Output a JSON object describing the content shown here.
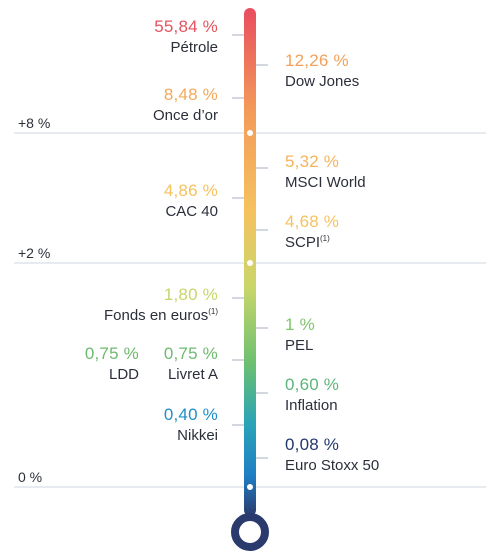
{
  "chart_data": {
    "type": "thermometer",
    "scale_labels": [
      {
        "label": "+8 %",
        "value": 8
      },
      {
        "label": "+2 %",
        "value": 2
      },
      {
        "label": "0 %",
        "value": 0
      }
    ],
    "entries": [
      {
        "label": "55,84 %",
        "name": "Pétrole",
        "value": 55.84,
        "side": "left",
        "color": "#e4545f"
      },
      {
        "label": "12,26 %",
        "name": "Dow Jones",
        "value": 12.26,
        "side": "right",
        "color": "#f3a05a"
      },
      {
        "label": "8,48 %",
        "name": "Once d’or",
        "value": 8.48,
        "side": "left",
        "color": "#f4a95a"
      },
      {
        "label": "5,32 %",
        "name": "MSCI World",
        "value": 5.32,
        "side": "right",
        "color": "#f4b45e"
      },
      {
        "label": "4,86 %",
        "name": "CAC 40",
        "value": 4.86,
        "side": "left",
        "color": "#f6c25f"
      },
      {
        "label": "4,68 %",
        "name": "SCPI",
        "note": "(1)",
        "value": 4.68,
        "side": "right",
        "color": "#f6c25f"
      },
      {
        "label": "1,80 %",
        "name": "Fonds en euros",
        "note": "(1)",
        "value": 1.8,
        "side": "left",
        "color": "#c8d56a"
      },
      {
        "label": "1 %",
        "name": "PEL",
        "value": 1.0,
        "side": "right",
        "color": "#7fc46b"
      },
      {
        "label": "0,75 %",
        "name": "LDD",
        "value": 0.75,
        "side": "left",
        "color": "#6dbb6e"
      },
      {
        "label": "0,75 %",
        "name": "Livret A",
        "value": 0.75,
        "side": "left",
        "color": "#6dbb6e"
      },
      {
        "label": "0,60 %",
        "name": "Inflation",
        "value": 0.6,
        "side": "right",
        "color": "#5db57a"
      },
      {
        "label": "0,40 %",
        "name": "Nikkei",
        "value": 0.4,
        "side": "left",
        "color": "#1f8fc9"
      },
      {
        "label": "0,08 %",
        "name": "Euro Stoxx 50",
        "value": 0.08,
        "side": "right",
        "color": "#24386b"
      }
    ],
    "gradient_colors": [
      "#e84d5f",
      "#f39a5a",
      "#f5c25f",
      "#c9d66a",
      "#6cc070",
      "#2aa3b8",
      "#1f7fc4",
      "#2a3a6c"
    ]
  }
}
